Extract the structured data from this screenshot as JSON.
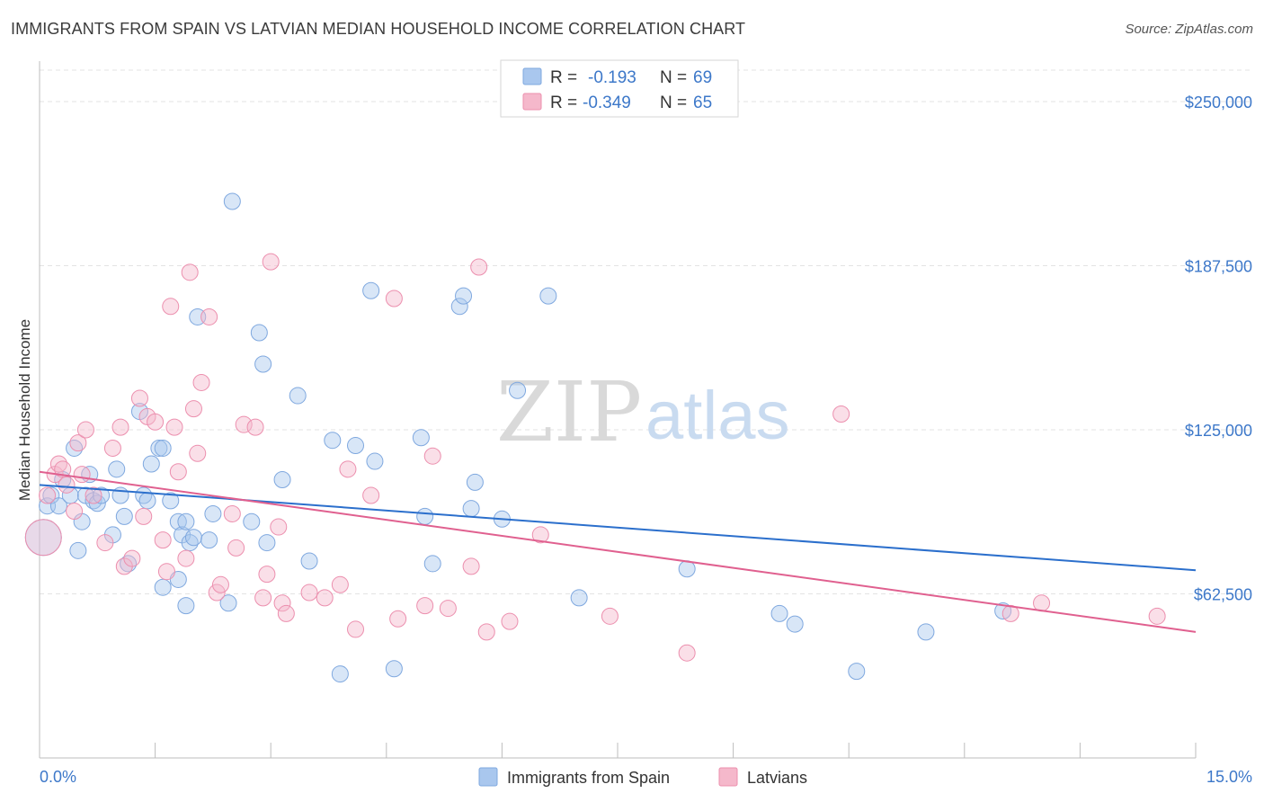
{
  "header": {
    "title": "IMMIGRANTS FROM SPAIN VS LATVIAN MEDIAN HOUSEHOLD INCOME CORRELATION CHART",
    "source": "Source: ZipAtlas.com"
  },
  "watermark": {
    "zip": "ZIP",
    "atlas": "atlas"
  },
  "legend": {
    "rows": [
      {
        "r_label": "R =",
        "r_value": "-0.193",
        "n_label": "N =",
        "n_value": "69",
        "color": "#a9c7ee"
      },
      {
        "r_label": "R =",
        "r_value": "-0.349",
        "n_label": "N =",
        "n_value": "65",
        "color": "#f5b8cb"
      }
    ]
  },
  "chart_data": {
    "type": "scatter",
    "title": "IMMIGRANTS FROM SPAIN VS LATVIAN MEDIAN HOUSEHOLD INCOME CORRELATION CHART",
    "xlabel": "",
    "ylabel": "Median Household Income",
    "xlim": [
      0,
      15
    ],
    "ylim": [
      0,
      262000
    ],
    "x_tick_labels": [
      "0.0%",
      "15.0%"
    ],
    "y_ticks": [
      62500,
      125000,
      187500,
      250000
    ],
    "y_tick_labels": [
      "$62,500",
      "$125,000",
      "$187,500",
      "$250,000"
    ],
    "grid": true,
    "legend_position": "bottom-center",
    "series": [
      {
        "name": "Immigrants from Spain",
        "color": "#a9c7ee",
        "stroke": "#7fa8df",
        "trend": {
          "x": [
            0,
            15
          ],
          "y": [
            104000,
            71500
          ],
          "color": "#2b6fcc"
        },
        "points": [
          [
            0.05,
            84000
          ],
          [
            0.1,
            96000
          ],
          [
            0.15,
            100000
          ],
          [
            0.25,
            96000
          ],
          [
            0.3,
            106000
          ],
          [
            0.4,
            100000
          ],
          [
            0.45,
            118000
          ],
          [
            0.5,
            79000
          ],
          [
            0.55,
            90000
          ],
          [
            0.6,
            100000
          ],
          [
            0.65,
            108000
          ],
          [
            0.7,
            98000
          ],
          [
            0.75,
            97000
          ],
          [
            0.8,
            100000
          ],
          [
            0.95,
            85000
          ],
          [
            1.0,
            110000
          ],
          [
            1.05,
            100000
          ],
          [
            1.1,
            92000
          ],
          [
            1.15,
            74000
          ],
          [
            1.3,
            132000
          ],
          [
            1.35,
            100000
          ],
          [
            1.4,
            98000
          ],
          [
            1.45,
            112000
          ],
          [
            1.55,
            118000
          ],
          [
            1.6,
            65000
          ],
          [
            1.6,
            118000
          ],
          [
            1.7,
            98000
          ],
          [
            1.8,
            68000
          ],
          [
            1.8,
            90000
          ],
          [
            1.85,
            85000
          ],
          [
            1.9,
            58000
          ],
          [
            1.9,
            90000
          ],
          [
            1.95,
            82000
          ],
          [
            2.0,
            84000
          ],
          [
            2.05,
            168000
          ],
          [
            2.2,
            83000
          ],
          [
            2.25,
            93000
          ],
          [
            2.45,
            59000
          ],
          [
            2.5,
            212000
          ],
          [
            2.75,
            90000
          ],
          [
            2.85,
            162000
          ],
          [
            2.9,
            150000
          ],
          [
            2.95,
            82000
          ],
          [
            3.15,
            106000
          ],
          [
            3.35,
            138000
          ],
          [
            3.5,
            75000
          ],
          [
            3.8,
            121000
          ],
          [
            3.9,
            32000
          ],
          [
            4.1,
            119000
          ],
          [
            4.3,
            178000
          ],
          [
            4.35,
            113000
          ],
          [
            4.6,
            34000
          ],
          [
            4.95,
            122000
          ],
          [
            5.0,
            92000
          ],
          [
            5.1,
            74000
          ],
          [
            5.45,
            172000
          ],
          [
            5.5,
            176000
          ],
          [
            5.6,
            95000
          ],
          [
            5.65,
            105000
          ],
          [
            6.0,
            91000
          ],
          [
            6.2,
            140000
          ],
          [
            6.6,
            176000
          ],
          [
            7.0,
            61000
          ],
          [
            8.4,
            72000
          ],
          [
            9.6,
            55000
          ],
          [
            9.8,
            51000
          ],
          [
            10.6,
            33000
          ],
          [
            11.5,
            48000
          ],
          [
            12.5,
            56000
          ]
        ]
      },
      {
        "name": "Latvians",
        "color": "#f5b8cb",
        "stroke": "#ec8fae",
        "trend": {
          "x": [
            0,
            15
          ],
          "y": [
            109000,
            48000
          ],
          "color": "#e0608f"
        },
        "points": [
          [
            0.05,
            84000
          ],
          [
            0.1,
            100000
          ],
          [
            0.2,
            108000
          ],
          [
            0.25,
            112000
          ],
          [
            0.3,
            110000
          ],
          [
            0.35,
            104000
          ],
          [
            0.45,
            94000
          ],
          [
            0.5,
            120000
          ],
          [
            0.55,
            108000
          ],
          [
            0.6,
            125000
          ],
          [
            0.7,
            100000
          ],
          [
            0.85,
            82000
          ],
          [
            0.95,
            118000
          ],
          [
            1.05,
            126000
          ],
          [
            1.1,
            73000
          ],
          [
            1.2,
            76000
          ],
          [
            1.3,
            137000
          ],
          [
            1.35,
            92000
          ],
          [
            1.4,
            130000
          ],
          [
            1.5,
            128000
          ],
          [
            1.6,
            83000
          ],
          [
            1.65,
            71000
          ],
          [
            1.7,
            172000
          ],
          [
            1.75,
            126000
          ],
          [
            1.8,
            109000
          ],
          [
            1.9,
            76000
          ],
          [
            1.95,
            185000
          ],
          [
            2.0,
            133000
          ],
          [
            2.05,
            116000
          ],
          [
            2.1,
            143000
          ],
          [
            2.2,
            168000
          ],
          [
            2.3,
            63000
          ],
          [
            2.35,
            66000
          ],
          [
            2.5,
            93000
          ],
          [
            2.55,
            80000
          ],
          [
            2.65,
            127000
          ],
          [
            2.8,
            126000
          ],
          [
            2.9,
            61000
          ],
          [
            2.95,
            70000
          ],
          [
            3.0,
            189000
          ],
          [
            3.1,
            88000
          ],
          [
            3.15,
            59000
          ],
          [
            3.2,
            55000
          ],
          [
            3.5,
            63000
          ],
          [
            3.7,
            61000
          ],
          [
            3.9,
            66000
          ],
          [
            4.0,
            110000
          ],
          [
            4.1,
            49000
          ],
          [
            4.3,
            100000
          ],
          [
            4.6,
            175000
          ],
          [
            4.65,
            53000
          ],
          [
            5.0,
            58000
          ],
          [
            5.1,
            115000
          ],
          [
            5.3,
            57000
          ],
          [
            5.6,
            73000
          ],
          [
            5.7,
            187000
          ],
          [
            5.8,
            48000
          ],
          [
            6.1,
            52000
          ],
          [
            6.5,
            85000
          ],
          [
            7.4,
            54000
          ],
          [
            8.4,
            40000
          ],
          [
            10.4,
            131000
          ],
          [
            12.6,
            55000
          ],
          [
            13.0,
            59000
          ],
          [
            14.5,
            54000
          ]
        ]
      }
    ]
  }
}
